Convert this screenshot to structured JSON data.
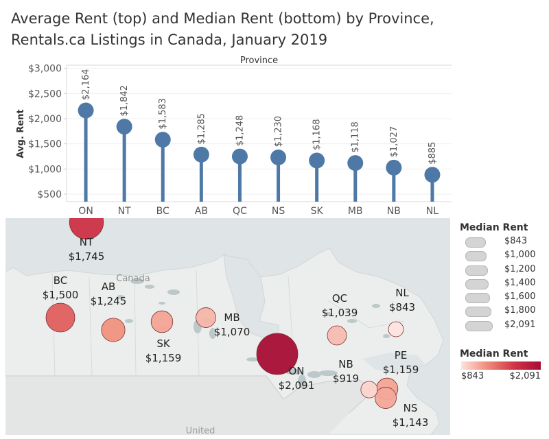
{
  "title": {
    "line1": "Average Rent (top) and Median Rent (bottom) by Province,",
    "line2": "Rentals.ca Listings in Canada, January 2019"
  },
  "colors": {
    "lollipop": "#4e79a7",
    "map_water": "#dfe4e6",
    "map_land": "#eceeed",
    "lakes": "#bcc8c9"
  },
  "chart_data": [
    {
      "type": "lollipop",
      "title": "Average Rent",
      "xlabel": "Province",
      "ylabel": "Avg. Rent",
      "categories": [
        "ON",
        "NT",
        "BC",
        "AB",
        "QC",
        "NS",
        "SK",
        "MB",
        "NB",
        "NL"
      ],
      "values": [
        2164,
        1842,
        1583,
        1285,
        1248,
        1230,
        1168,
        1118,
        1027,
        885
      ],
      "value_labels": [
        "$2,164",
        "$1,842",
        "$1,583",
        "$1,285",
        "$1,248",
        "$1,230",
        "$1,168",
        "$1,118",
        "$1,027",
        "$885"
      ],
      "ylim": [
        350,
        3050
      ],
      "yticks": [
        500,
        1000,
        1500,
        2000,
        2500,
        3000
      ],
      "ytick_labels": [
        "$500",
        "$1,000",
        "$1,500",
        "$2,000",
        "$2,500",
        "$3,000"
      ],
      "grid": true
    },
    {
      "type": "symbol-map",
      "title": "Median Rent",
      "map_label": "Canada",
      "map_sublabel": "United",
      "points": [
        {
          "province": "NT",
          "label": "$1,745",
          "value": 1745
        },
        {
          "province": "BC",
          "label": "$1,500",
          "value": 1500
        },
        {
          "province": "AB",
          "label": "$1,245",
          "value": 1245
        },
        {
          "province": "SK",
          "label": "$1,159",
          "value": 1159
        },
        {
          "province": "MB",
          "label": "$1,070",
          "value": 1070
        },
        {
          "province": "ON",
          "label": "$2,091",
          "value": 2091
        },
        {
          "province": "QC",
          "label": "$1,039",
          "value": 1039
        },
        {
          "province": "NL",
          "label": "$843",
          "value": 843
        },
        {
          "province": "NB",
          "label": "$919",
          "value": 919
        },
        {
          "province": "PE",
          "label": "$1,159",
          "value": 1159
        },
        {
          "province": "NS",
          "label": "$1,143",
          "value": 1143
        }
      ],
      "size_legend": {
        "title": "Median Rent",
        "entries": [
          {
            "label": "$843",
            "value": 843
          },
          {
            "label": "$1,000",
            "value": 1000
          },
          {
            "label": "$1,200",
            "value": 1200
          },
          {
            "label": "$1,400",
            "value": 1400
          },
          {
            "label": "$1,600",
            "value": 1600
          },
          {
            "label": "$1,800",
            "value": 1800
          },
          {
            "label": "$2,091",
            "value": 2091
          }
        ]
      },
      "color_legend": {
        "title": "Median Rent",
        "min_label": "$843",
        "max_label": "$2,091",
        "min": 843,
        "max": 2091
      }
    }
  ]
}
